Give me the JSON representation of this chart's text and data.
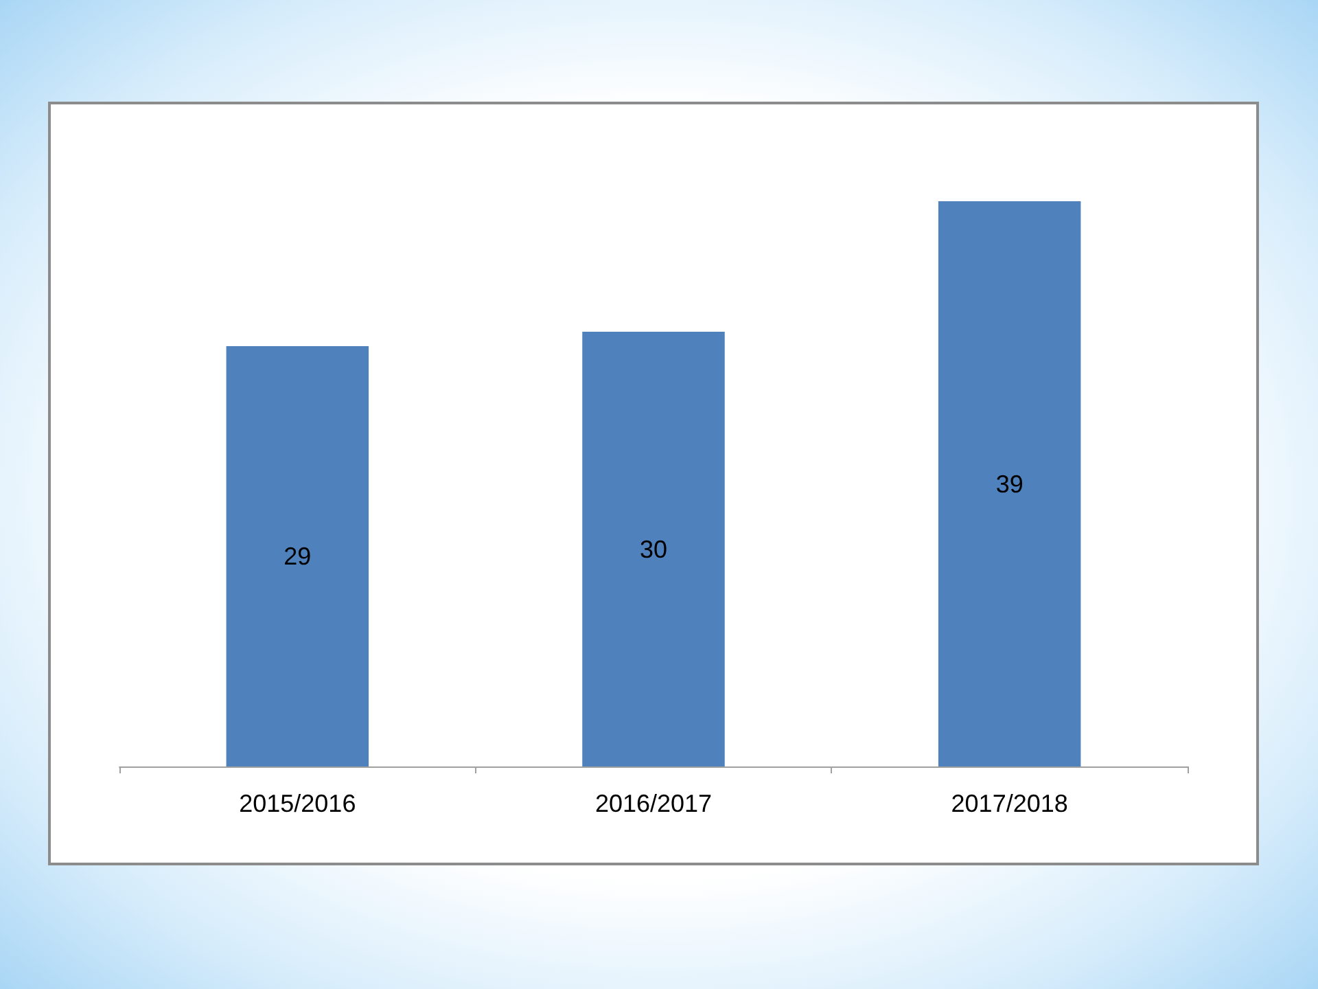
{
  "chart_data": {
    "type": "bar",
    "categories": [
      "2015/2016",
      "2016/2017",
      "2017/2018"
    ],
    "values": [
      29,
      30,
      39
    ],
    "color": "#4f81bd",
    "data_labels": true
  }
}
